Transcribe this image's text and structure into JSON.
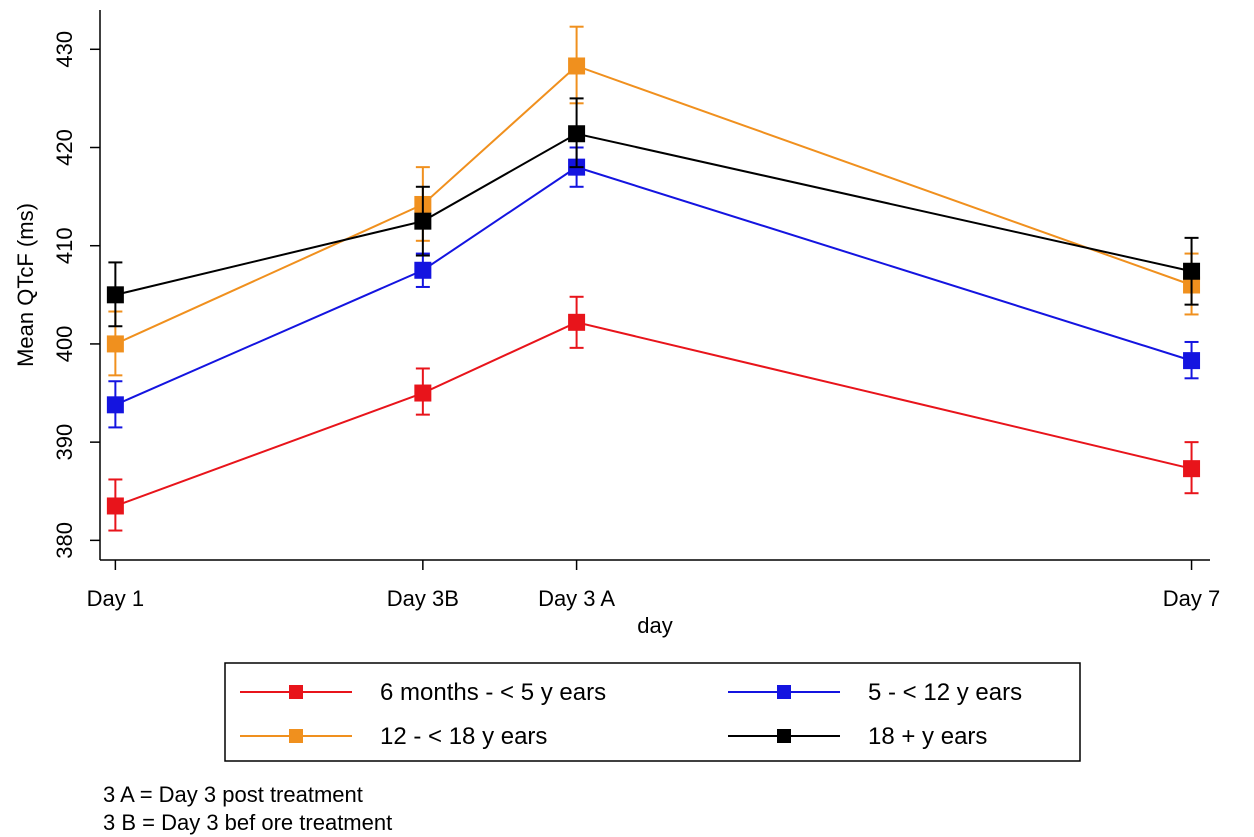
{
  "chart_data": {
    "type": "line",
    "ylabel": "Mean QTcF (ms)",
    "xlabel": "day",
    "categories": [
      "Day 1",
      "Day 3B",
      "Day 3 A",
      "Day 7"
    ],
    "x": [
      1,
      3.0,
      4.0,
      8.0
    ],
    "xlim": [
      0.9,
      8.12
    ],
    "ylim": [
      378,
      434
    ],
    "yticks": [
      380,
      390,
      400,
      410,
      420,
      430
    ],
    "grid": false,
    "error_bars": true,
    "series": [
      {
        "name": "6 months - < 5 y ears",
        "color": "#e8141b",
        "marker": "square",
        "values": [
          383.5,
          395.0,
          402.2,
          387.3
        ],
        "err_low": [
          381.0,
          392.8,
          399.6,
          384.8
        ],
        "err_high": [
          386.2,
          397.5,
          404.8,
          390.0
        ]
      },
      {
        "name": "5 - < 12 y ears",
        "color": "#1414e0",
        "marker": "square",
        "values": [
          393.8,
          407.5,
          418.0,
          398.3
        ],
        "err_low": [
          391.5,
          405.8,
          416.0,
          396.5
        ],
        "err_high": [
          396.2,
          409.2,
          420.0,
          400.2
        ]
      },
      {
        "name": "12 - < 18 y ears",
        "color": "#f0901e",
        "marker": "square",
        "values": [
          400.0,
          414.2,
          428.3,
          406.0
        ],
        "err_low": [
          396.8,
          410.5,
          424.5,
          403.0
        ],
        "err_high": [
          403.3,
          418.0,
          432.3,
          409.2
        ]
      },
      {
        "name": "18 + y ears",
        "color": "#000000",
        "marker": "square",
        "values": [
          405.0,
          412.5,
          421.4,
          407.4
        ],
        "err_low": [
          401.8,
          409.0,
          418.0,
          404.0
        ],
        "err_high": [
          408.3,
          416.0,
          425.0,
          410.8
        ]
      }
    ],
    "legend": {
      "placement": "bottom",
      "entries": [
        "6 months - < 5 y ears",
        "5 - < 12 y ears",
        "12 - < 18 y ears",
        "18 + y ears"
      ]
    },
    "notes": [
      "3 A = Day 3 post treatment",
      "3 B = Day 3 bef ore treatment"
    ]
  }
}
